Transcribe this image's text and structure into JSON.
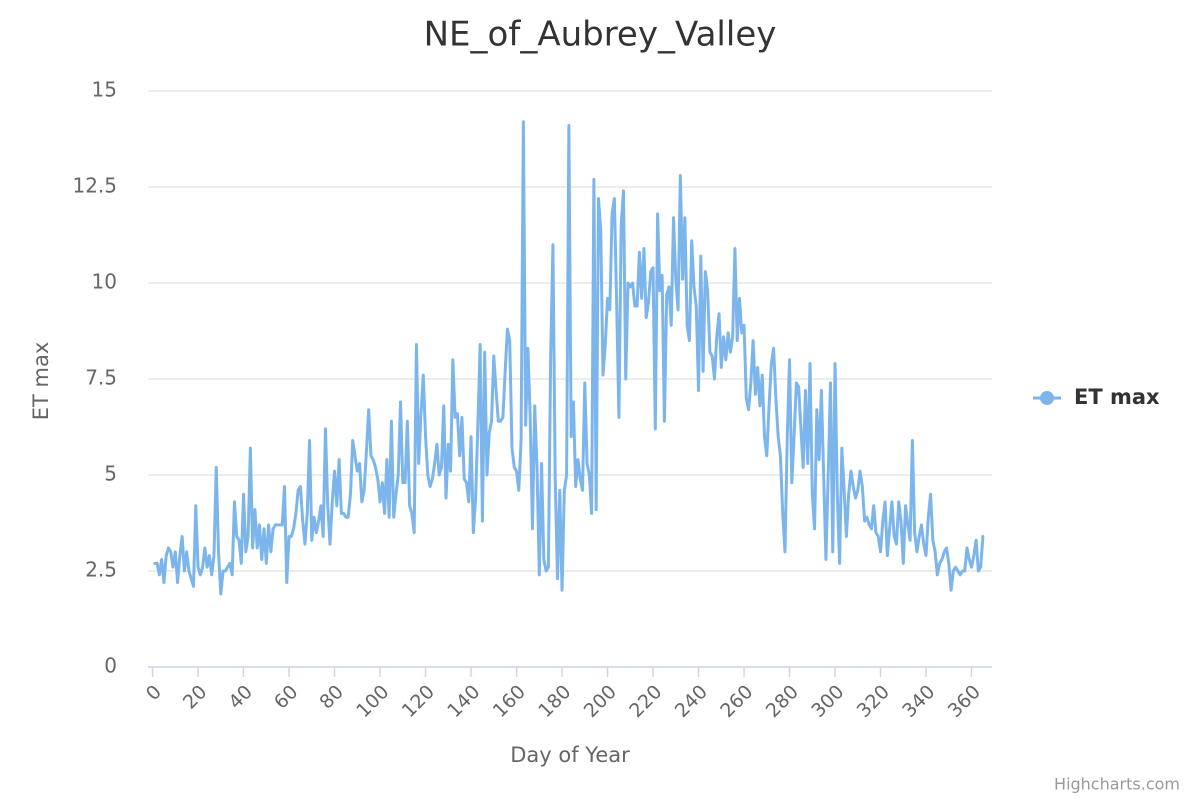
{
  "chart_data": {
    "type": "line",
    "title": "NE_of_Aubrey_Valley",
    "x_label": "Day of Year",
    "y_label": "ET max",
    "x": [
      1,
      2,
      3,
      4,
      5,
      6,
      7,
      8,
      9,
      10,
      11,
      12,
      13,
      14,
      15,
      16,
      17,
      18,
      19,
      20,
      21,
      22,
      23,
      24,
      25,
      26,
      27,
      28,
      29,
      30,
      31,
      32,
      33,
      34,
      35,
      36,
      37,
      38,
      39,
      40,
      41,
      42,
      43,
      44,
      45,
      46,
      47,
      48,
      49,
      50,
      51,
      52,
      53,
      54,
      55,
      56,
      57,
      58,
      59,
      60,
      61,
      62,
      63,
      64,
      65,
      66,
      67,
      68,
      69,
      70,
      71,
      72,
      73,
      74,
      75,
      76,
      77,
      78,
      79,
      80,
      81,
      82,
      83,
      84,
      85,
      86,
      87,
      88,
      89,
      90,
      91,
      92,
      93,
      94,
      95,
      96,
      97,
      98,
      99,
      100,
      101,
      102,
      103,
      104,
      105,
      106,
      107,
      108,
      109,
      110,
      111,
      112,
      113,
      114,
      115,
      116,
      117,
      118,
      119,
      120,
      121,
      122,
      123,
      124,
      125,
      126,
      127,
      128,
      129,
      130,
      131,
      132,
      133,
      134,
      135,
      136,
      137,
      138,
      139,
      140,
      141,
      142,
      143,
      144,
      145,
      146,
      147,
      148,
      149,
      150,
      151,
      152,
      153,
      154,
      155,
      156,
      157,
      158,
      159,
      160,
      161,
      162,
      163,
      164,
      165,
      166,
      167,
      168,
      169,
      170,
      171,
      172,
      173,
      174,
      175,
      176,
      177,
      178,
      179,
      180,
      181,
      182,
      183,
      184,
      185,
      186,
      187,
      188,
      189,
      190,
      191,
      192,
      193,
      194,
      195,
      196,
      197,
      198,
      199,
      200,
      201,
      202,
      203,
      204,
      205,
      206,
      207,
      208,
      209,
      210,
      211,
      212,
      213,
      214,
      215,
      216,
      217,
      218,
      219,
      220,
      221,
      222,
      223,
      224,
      225,
      226,
      227,
      228,
      229,
      230,
      231,
      232,
      233,
      234,
      235,
      236,
      237,
      238,
      239,
      240,
      241,
      242,
      243,
      244,
      245,
      246,
      247,
      248,
      249,
      250,
      251,
      252,
      253,
      254,
      255,
      256,
      257,
      258,
      259,
      260,
      261,
      262,
      263,
      264,
      265,
      266,
      267,
      268,
      269,
      270,
      271,
      272,
      273,
      274,
      275,
      276,
      277,
      278,
      279,
      280,
      281,
      282,
      283,
      284,
      285,
      286,
      287,
      288,
      289,
      290,
      291,
      292,
      293,
      294,
      295,
      296,
      297,
      298,
      299,
      300,
      301,
      302,
      303,
      304,
      305,
      306,
      307,
      308,
      309,
      310,
      311,
      312,
      313,
      314,
      315,
      316,
      317,
      318,
      319,
      320,
      321,
      322,
      323,
      324,
      325,
      326,
      327,
      328,
      329,
      330,
      331,
      332,
      333,
      334,
      335,
      336,
      337,
      338,
      339,
      340,
      341,
      342,
      343,
      344,
      345,
      346,
      347,
      348,
      349,
      350,
      351,
      352,
      353,
      354,
      355,
      356,
      357,
      358,
      359,
      360,
      361,
      362,
      363,
      364,
      365
    ],
    "series": [
      {
        "name": "ET max",
        "color": "#7cb5ec",
        "values": [
          2.7,
          2.7,
          2.4,
          2.8,
          2.2,
          2.9,
          3.1,
          3.0,
          2.6,
          3.0,
          2.2,
          2.9,
          3.4,
          2.5,
          3.0,
          2.5,
          2.3,
          2.1,
          4.2,
          2.6,
          2.4,
          2.6,
          3.1,
          2.6,
          2.9,
          2.4,
          2.9,
          5.2,
          3.0,
          1.9,
          2.5,
          2.5,
          2.6,
          2.7,
          2.4,
          4.3,
          3.4,
          3.3,
          2.7,
          4.5,
          3.0,
          3.4,
          5.7,
          3.1,
          4.1,
          3.1,
          3.7,
          2.8,
          3.6,
          2.7,
          3.7,
          3.0,
          3.6,
          3.7,
          3.7,
          3.7,
          3.7,
          4.7,
          2.2,
          3.4,
          3.4,
          3.6,
          4.0,
          4.6,
          4.7,
          3.8,
          3.2,
          4.0,
          5.9,
          3.3,
          3.9,
          3.5,
          3.8,
          4.2,
          3.4,
          6.2,
          4.2,
          3.2,
          4.3,
          5.1,
          4.2,
          5.4,
          4.0,
          4.0,
          3.9,
          3.9,
          4.5,
          5.9,
          5.5,
          5.1,
          5.3,
          4.3,
          4.6,
          5.6,
          6.7,
          5.5,
          5.4,
          5.2,
          4.9,
          4.3,
          4.8,
          4.0,
          5.4,
          3.9,
          6.4,
          3.9,
          4.5,
          5.0,
          6.9,
          4.8,
          4.8,
          6.4,
          4.2,
          4.0,
          3.5,
          8.4,
          5.3,
          6.6,
          7.6,
          6.0,
          5.0,
          4.7,
          4.9,
          5.3,
          5.8,
          5.0,
          5.2,
          6.8,
          4.4,
          5.8,
          5.1,
          8.0,
          6.5,
          6.6,
          5.5,
          6.5,
          4.9,
          4.8,
          4.3,
          6.0,
          3.5,
          4.4,
          6.3,
          8.4,
          3.8,
          8.2,
          5.0,
          6.1,
          6.4,
          8.1,
          7.2,
          6.4,
          6.4,
          6.5,
          7.7,
          8.8,
          8.5,
          5.7,
          5.2,
          5.1,
          4.6,
          5.9,
          14.2,
          6.3,
          8.3,
          6.5,
          3.6,
          6.8,
          5.2,
          2.4,
          5.3,
          2.8,
          2.5,
          2.6,
          8.1,
          11.0,
          4.9,
          2.3,
          4.6,
          2.0,
          4.6,
          5.0,
          14.1,
          6.0,
          6.9,
          4.7,
          5.4,
          4.9,
          4.6,
          7.4,
          5.3,
          5.0,
          4.0,
          12.7,
          4.1,
          12.2,
          11.4,
          7.6,
          8.4,
          9.6,
          9.3,
          11.8,
          12.2,
          9.5,
          6.5,
          11.5,
          12.4,
          7.5,
          10.0,
          9.9,
          10.0,
          9.4,
          9.4,
          10.8,
          9.6,
          10.9,
          9.1,
          9.5,
          10.3,
          10.4,
          6.2,
          11.8,
          9.8,
          10.2,
          6.4,
          9.7,
          9.9,
          8.9,
          11.7,
          10.1,
          9.3,
          12.8,
          10.1,
          11.7,
          8.9,
          8.5,
          11.1,
          9.9,
          9.4,
          7.2,
          10.7,
          7.7,
          10.3,
          9.8,
          8.2,
          8.1,
          7.5,
          8.6,
          9.2,
          7.8,
          8.6,
          8.0,
          8.7,
          8.2,
          8.6,
          10.9,
          8.5,
          9.6,
          8.7,
          8.9,
          7.0,
          6.7,
          7.4,
          8.5,
          7.1,
          7.8,
          6.8,
          7.6,
          6.0,
          5.5,
          6.8,
          7.9,
          8.3,
          7.0,
          6.0,
          5.5,
          4.0,
          3.0,
          6.0,
          8.0,
          4.8,
          6.0,
          7.4,
          7.3,
          6.2,
          5.2,
          7.2,
          5.3,
          7.9,
          4.5,
          3.6,
          6.7,
          5.4,
          7.2,
          5.0,
          2.8,
          5.0,
          7.4,
          3.0,
          7.9,
          4.5,
          2.7,
          5.7,
          4.6,
          3.4,
          4.5,
          5.1,
          4.7,
          4.4,
          4.6,
          5.1,
          4.7,
          3.8,
          3.9,
          3.7,
          3.6,
          4.2,
          3.5,
          3.4,
          3.0,
          3.8,
          4.3,
          2.9,
          3.6,
          4.3,
          3.4,
          3.2,
          4.3,
          3.8,
          2.7,
          4.2,
          3.7,
          3.3,
          5.9,
          3.5,
          3.0,
          3.4,
          3.7,
          3.2,
          2.9,
          3.9,
          4.5,
          3.3,
          3.0,
          2.4,
          2.7,
          2.8,
          3.0,
          3.1,
          2.7,
          2.0,
          2.5,
          2.6,
          2.5,
          2.4,
          2.5,
          2.5,
          3.1,
          2.8,
          2.6,
          2.9,
          3.3,
          2.5,
          2.6,
          3.4
        ]
      }
    ],
    "xlim": [
      -2,
      369
    ],
    "ylim": [
      0,
      15
    ],
    "xticks": [
      0,
      20,
      40,
      60,
      80,
      100,
      120,
      140,
      160,
      180,
      200,
      220,
      240,
      260,
      280,
      300,
      320,
      340,
      360
    ],
    "yticks": [
      0,
      2.5,
      5,
      7.5,
      10,
      12.5,
      15
    ],
    "grid": true,
    "legend": "right",
    "credits": "Highcharts.com"
  }
}
